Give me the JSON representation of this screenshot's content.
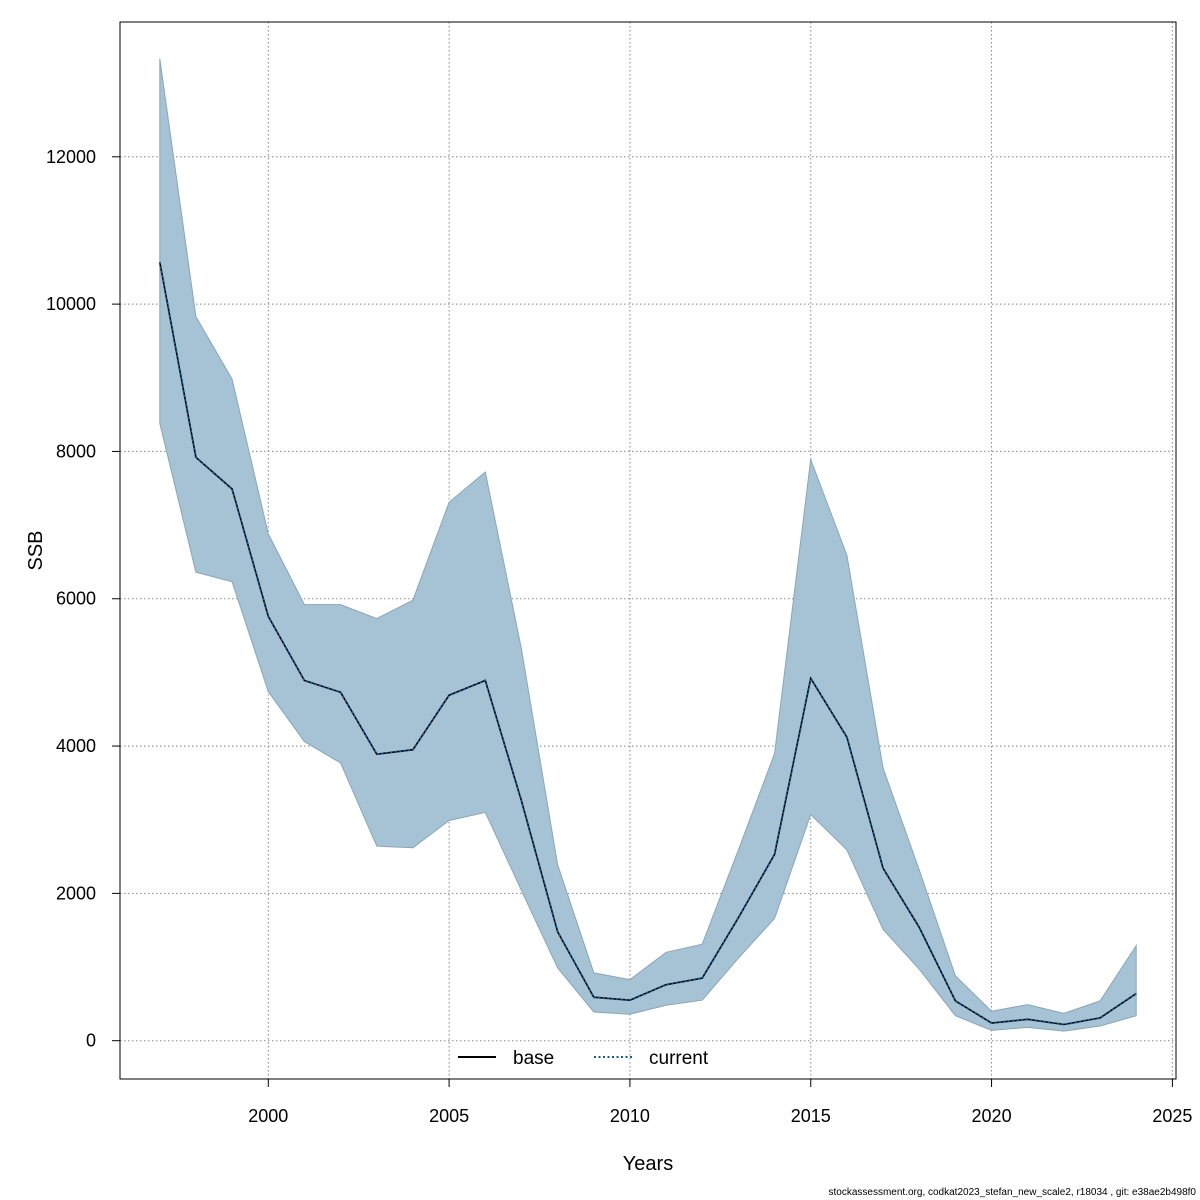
{
  "chart_data": {
    "type": "line",
    "xlabel": "Years",
    "ylabel": "SSB",
    "xlim": [
      1995.9,
      2025.1
    ],
    "ylim": [
      -520,
      13830
    ],
    "xticks": [
      2000,
      2005,
      2010,
      2015,
      2020,
      2025
    ],
    "yticks": [
      0,
      2000,
      4000,
      6000,
      8000,
      10000,
      12000
    ],
    "grid": true,
    "legend_position": "bottom-center",
    "band_color": "#a5c3d4",
    "x": [
      1997,
      1998,
      1999,
      2000,
      2001,
      2002,
      2003,
      2004,
      2005,
      2006,
      2007,
      2008,
      2009,
      2010,
      2011,
      2012,
      2013,
      2014,
      2015,
      2016,
      2017,
      2018,
      2019,
      2020,
      2021,
      2022,
      2023,
      2024
    ],
    "band_lower": [
      8380,
      6360,
      6230,
      4740,
      4060,
      3770,
      2640,
      2620,
      2990,
      3100,
      2040,
      990,
      390,
      360,
      480,
      550,
      1120,
      1660,
      3070,
      2590,
      1510,
      970,
      340,
      140,
      180,
      130,
      200,
      340
    ],
    "band_upper": [
      13330,
      9830,
      8980,
      6880,
      5920,
      5920,
      5730,
      5980,
      7310,
      7720,
      5320,
      2390,
      920,
      830,
      1200,
      1310,
      2590,
      3900,
      7890,
      6590,
      3700,
      2320,
      880,
      400,
      490,
      370,
      540,
      1290
    ],
    "series": [
      {
        "name": "base",
        "color": "#000000",
        "dash": "solid",
        "values": [
          10570,
          7920,
          7490,
          5760,
          4890,
          4730,
          3890,
          3950,
          4690,
          4890,
          3260,
          1480,
          590,
          550,
          760,
          850,
          1670,
          2530,
          4920,
          4120,
          2340,
          1540,
          540,
          240,
          290,
          220,
          310,
          640
        ]
      },
      {
        "name": "current",
        "color": "#1a5a8c",
        "dash": "dotted",
        "values": [
          10570,
          7920,
          7490,
          5760,
          4890,
          4730,
          3890,
          3950,
          4690,
          4890,
          3260,
          1480,
          590,
          550,
          760,
          850,
          1670,
          2530,
          4920,
          4120,
          2340,
          1540,
          540,
          240,
          290,
          220,
          310,
          640
        ]
      }
    ]
  },
  "footer_text": "stockassessment.org, codkat2023_stefan_new_scale2, r18034 , git: e38ae2b498f0"
}
